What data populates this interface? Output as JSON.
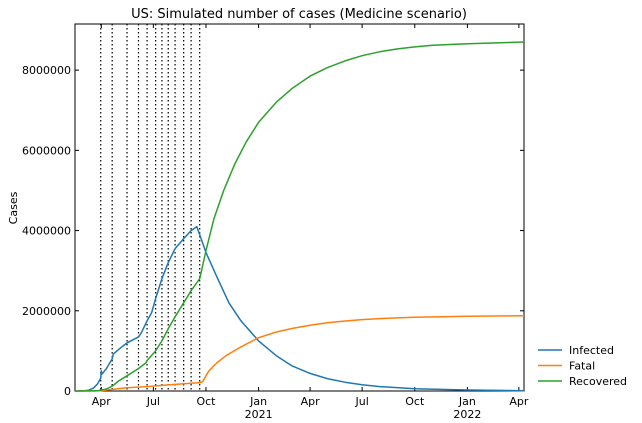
{
  "chart_data": {
    "type": "line",
    "title": "US: Simulated number of cases (Medicine scenario)",
    "xlabel": "",
    "ylabel": "Cases",
    "x_axis": {
      "start_date": "2020-02-15",
      "end_date": "2022-04-10",
      "ticks": [
        {
          "date": "2020-04-01",
          "label": "Apr",
          "sublabel": ""
        },
        {
          "date": "2020-07-01",
          "label": "Jul",
          "sublabel": ""
        },
        {
          "date": "2020-10-01",
          "label": "Oct",
          "sublabel": ""
        },
        {
          "date": "2021-01-01",
          "label": "Jan",
          "sublabel": "2021"
        },
        {
          "date": "2021-04-01",
          "label": "Apr",
          "sublabel": ""
        },
        {
          "date": "2021-07-01",
          "label": "Jul",
          "sublabel": ""
        },
        {
          "date": "2021-10-01",
          "label": "Oct",
          "sublabel": ""
        },
        {
          "date": "2022-01-01",
          "label": "Jan",
          "sublabel": "2022"
        },
        {
          "date": "2022-04-01",
          "label": "Apr",
          "sublabel": ""
        }
      ]
    },
    "y_axis": {
      "range": [
        0,
        9150000
      ],
      "ticks": [
        0,
        2000000,
        4000000,
        6000000,
        8000000
      ],
      "tick_labels": [
        "0",
        "2000000",
        "4000000",
        "6000000",
        "8000000"
      ]
    },
    "grid": false,
    "legend_position": "outside-bottom-right",
    "vertical_lines": [
      "2020-03-31",
      "2020-04-20",
      "2020-05-16",
      "2020-06-05",
      "2020-06-20",
      "2020-07-05",
      "2020-07-16",
      "2020-07-27",
      "2020-08-08",
      "2020-08-23",
      "2020-09-05",
      "2020-09-20"
    ],
    "series": [
      {
        "name": "Infected",
        "color": "#1f77b4",
        "points": [
          [
            "2020-02-15",
            0
          ],
          [
            "2020-03-01",
            2000
          ],
          [
            "2020-03-10",
            20000
          ],
          [
            "2020-03-18",
            70000
          ],
          [
            "2020-03-25",
            170000
          ],
          [
            "2020-03-31",
            320000
          ],
          [
            "2020-04-01",
            500000
          ],
          [
            "2020-04-02",
            420000
          ],
          [
            "2020-04-10",
            560000
          ],
          [
            "2020-04-20",
            800000
          ],
          [
            "2020-04-22",
            920000
          ],
          [
            "2020-05-05",
            1080000
          ],
          [
            "2020-05-16",
            1200000
          ],
          [
            "2020-06-05",
            1350000
          ],
          [
            "2020-06-10",
            1450000
          ],
          [
            "2020-06-20",
            1750000
          ],
          [
            "2020-06-28",
            1950000
          ],
          [
            "2020-07-05",
            2300000
          ],
          [
            "2020-07-16",
            2800000
          ],
          [
            "2020-07-27",
            3200000
          ],
          [
            "2020-08-08",
            3550000
          ],
          [
            "2020-08-23",
            3800000
          ],
          [
            "2020-09-05",
            4000000
          ],
          [
            "2020-09-15",
            4100000
          ],
          [
            "2020-09-20",
            3900000
          ],
          [
            "2020-10-01",
            3450000
          ],
          [
            "2020-10-20",
            2850000
          ],
          [
            "2020-11-10",
            2200000
          ],
          [
            "2020-12-01",
            1750000
          ],
          [
            "2021-01-01",
            1250000
          ],
          [
            "2021-02-01",
            880000
          ],
          [
            "2021-03-01",
            620000
          ],
          [
            "2021-04-01",
            440000
          ],
          [
            "2021-05-01",
            310000
          ],
          [
            "2021-06-01",
            220000
          ],
          [
            "2021-07-01",
            155000
          ],
          [
            "2021-08-01",
            110000
          ],
          [
            "2021-10-01",
            55000
          ],
          [
            "2022-01-01",
            25000
          ],
          [
            "2022-04-10",
            8000
          ]
        ]
      },
      {
        "name": "Fatal",
        "color": "#ff7f0e",
        "points": [
          [
            "2020-02-15",
            0
          ],
          [
            "2020-03-20",
            1000
          ],
          [
            "2020-04-01",
            10000
          ],
          [
            "2020-04-20",
            40000
          ],
          [
            "2020-05-16",
            80000
          ],
          [
            "2020-06-20",
            110000
          ],
          [
            "2020-07-16",
            140000
          ],
          [
            "2020-08-23",
            180000
          ],
          [
            "2020-09-20",
            210000
          ],
          [
            "2020-09-25",
            230000
          ],
          [
            "2020-10-05",
            480000
          ],
          [
            "2020-10-20",
            700000
          ],
          [
            "2020-11-05",
            880000
          ],
          [
            "2020-12-01",
            1100000
          ],
          [
            "2021-01-01",
            1330000
          ],
          [
            "2021-02-01",
            1470000
          ],
          [
            "2021-03-01",
            1560000
          ],
          [
            "2021-04-01",
            1640000
          ],
          [
            "2021-05-01",
            1700000
          ],
          [
            "2021-06-01",
            1745000
          ],
          [
            "2021-07-01",
            1780000
          ],
          [
            "2021-08-01",
            1805000
          ],
          [
            "2021-10-01",
            1840000
          ],
          [
            "2022-01-01",
            1865000
          ],
          [
            "2022-04-10",
            1875000
          ]
        ]
      },
      {
        "name": "Recovered",
        "color": "#2ca02c",
        "points": [
          [
            "2020-02-15",
            0
          ],
          [
            "2020-03-25",
            5000
          ],
          [
            "2020-04-10",
            50000
          ],
          [
            "2020-04-20",
            120000
          ],
          [
            "2020-05-01",
            250000
          ],
          [
            "2020-05-16",
            380000
          ],
          [
            "2020-06-05",
            560000
          ],
          [
            "2020-06-18",
            700000
          ],
          [
            "2020-06-20",
            760000
          ],
          [
            "2020-07-05",
            1000000
          ],
          [
            "2020-07-16",
            1250000
          ],
          [
            "2020-07-27",
            1550000
          ],
          [
            "2020-08-08",
            1850000
          ],
          [
            "2020-08-23",
            2200000
          ],
          [
            "2020-09-05",
            2500000
          ],
          [
            "2020-09-20",
            2800000
          ],
          [
            "2020-10-01",
            3500000
          ],
          [
            "2020-10-15",
            4300000
          ],
          [
            "2020-11-01",
            5000000
          ],
          [
            "2020-11-20",
            5650000
          ],
          [
            "2020-12-10",
            6200000
          ],
          [
            "2021-01-01",
            6700000
          ],
          [
            "2021-02-01",
            7200000
          ],
          [
            "2021-03-01",
            7550000
          ],
          [
            "2021-04-01",
            7850000
          ],
          [
            "2021-05-01",
            8060000
          ],
          [
            "2021-06-01",
            8230000
          ],
          [
            "2021-07-01",
            8360000
          ],
          [
            "2021-08-01",
            8460000
          ],
          [
            "2021-09-01",
            8530000
          ],
          [
            "2021-10-01",
            8580000
          ],
          [
            "2021-11-01",
            8620000
          ],
          [
            "2022-01-01",
            8660000
          ],
          [
            "2022-04-10",
            8700000
          ]
        ]
      }
    ]
  }
}
